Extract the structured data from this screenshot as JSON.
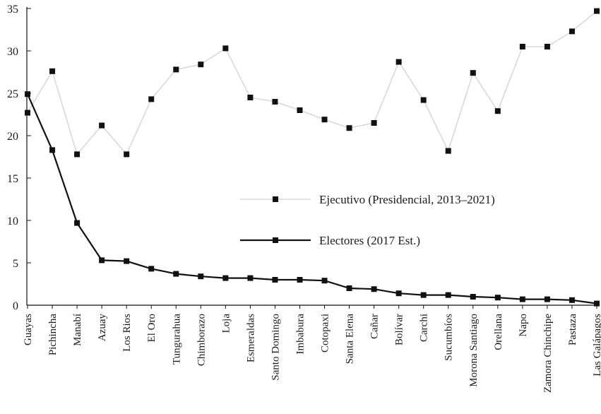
{
  "chart_data": {
    "type": "line",
    "categories": [
      "Guayas",
      "Pichincha",
      "Manabí",
      "Azuay",
      "Los Rios",
      "El Oro",
      "Tungurahua",
      "Chimborazo",
      "Loja",
      "Esmeraldas",
      "Santo Domingo",
      "Imbabura",
      "Cotopaxi",
      "Santa Elena",
      "Cañar",
      "Bolívar",
      "Carchi",
      "Sucumbíos",
      "Morona Santiago",
      "Orellana",
      "Napo",
      "Zamora Chinchipe",
      "Pastaza",
      "Las Galápagos"
    ],
    "series": [
      {
        "name": "Ejecutivo (Presidencial, 2013–2021)",
        "color": "#d9d9d9",
        "values": [
          22.7,
          27.6,
          17.8,
          21.2,
          17.8,
          24.3,
          27.8,
          28.4,
          30.3,
          24.5,
          24.0,
          23.0,
          21.9,
          20.9,
          21.5,
          28.7,
          24.2,
          18.2,
          27.4,
          22.9,
          30.5,
          30.5,
          32.3,
          34.7
        ]
      },
      {
        "name": "Electores (2017 Est.)",
        "color": "#111111",
        "values": [
          24.9,
          18.3,
          9.7,
          5.3,
          5.2,
          4.3,
          3.7,
          3.4,
          3.2,
          3.2,
          3.0,
          3.0,
          2.9,
          2.0,
          1.9,
          1.4,
          1.2,
          1.2,
          1.0,
          0.9,
          0.7,
          0.7,
          0.6,
          0.2
        ]
      }
    ],
    "ylim": [
      0,
      35
    ],
    "yticks": [
      0,
      5,
      10,
      15,
      20,
      25,
      30,
      35
    ],
    "title": "",
    "xlabel": "",
    "ylabel": "",
    "grid": false,
    "legend_position": "center-right"
  }
}
